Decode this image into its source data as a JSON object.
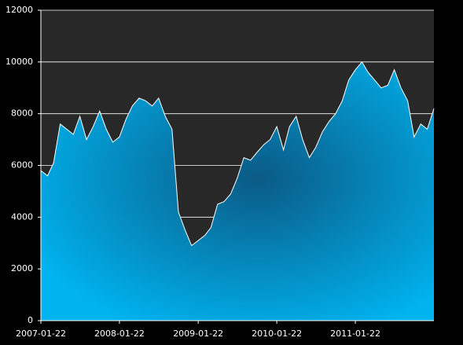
{
  "chart_data": {
    "type": "area",
    "x": [
      "2007-01-22",
      "2007-02-22",
      "2007-03-22",
      "2007-04-22",
      "2007-05-22",
      "2007-06-22",
      "2007-07-22",
      "2007-08-22",
      "2007-09-22",
      "2007-10-22",
      "2007-11-22",
      "2007-12-22",
      "2008-01-22",
      "2008-02-22",
      "2008-03-22",
      "2008-04-22",
      "2008-05-22",
      "2008-06-22",
      "2008-07-22",
      "2008-08-22",
      "2008-09-22",
      "2008-10-22",
      "2008-11-22",
      "2008-12-22",
      "2009-01-22",
      "2009-02-22",
      "2009-03-22",
      "2009-04-22",
      "2009-05-22",
      "2009-06-22",
      "2009-07-22",
      "2009-08-22",
      "2009-09-22",
      "2009-10-22",
      "2009-11-22",
      "2009-12-22",
      "2010-01-22",
      "2010-02-22",
      "2010-03-22",
      "2010-04-22",
      "2010-05-22",
      "2010-06-22",
      "2010-07-22",
      "2010-08-22",
      "2010-09-22",
      "2010-10-22",
      "2010-11-22",
      "2010-12-22",
      "2011-01-22",
      "2011-02-22",
      "2011-03-22",
      "2011-04-22",
      "2011-05-22",
      "2011-06-22",
      "2011-07-22",
      "2011-08-22",
      "2011-09-22",
      "2011-10-22",
      "2011-11-22",
      "2011-12-22",
      "2012-01-22"
    ],
    "values": [
      5800,
      5600,
      6100,
      7600,
      7400,
      7200,
      7900,
      7000,
      7500,
      8100,
      7400,
      6900,
      7100,
      7800,
      8300,
      8600,
      8500,
      8300,
      8600,
      7900,
      7400,
      4200,
      3500,
      2900,
      3100,
      3300,
      3600,
      4500,
      4600,
      4900,
      5500,
      6300,
      6200,
      6500,
      6800,
      7000,
      7500,
      6600,
      7500,
      7900,
      7000,
      6300,
      6700,
      7300,
      7700,
      8000,
      8500,
      9300,
      9700,
      10000,
      9600,
      9300,
      9000,
      9100,
      9700,
      9000,
      8500,
      7100,
      7600,
      7400,
      8200
    ],
    "color": "#00b4f0",
    "xlim": [
      "2007-01-22",
      "2012-01-22"
    ],
    "xticks": [
      "2007-01-22",
      "2008-01-22",
      "2009-01-22",
      "2010-01-22",
      "2011-01-22"
    ],
    "ylim": [
      0,
      12000
    ],
    "yticks": [
      0,
      2000,
      4000,
      6000,
      8000,
      10000,
      12000
    ],
    "grid": true
  }
}
